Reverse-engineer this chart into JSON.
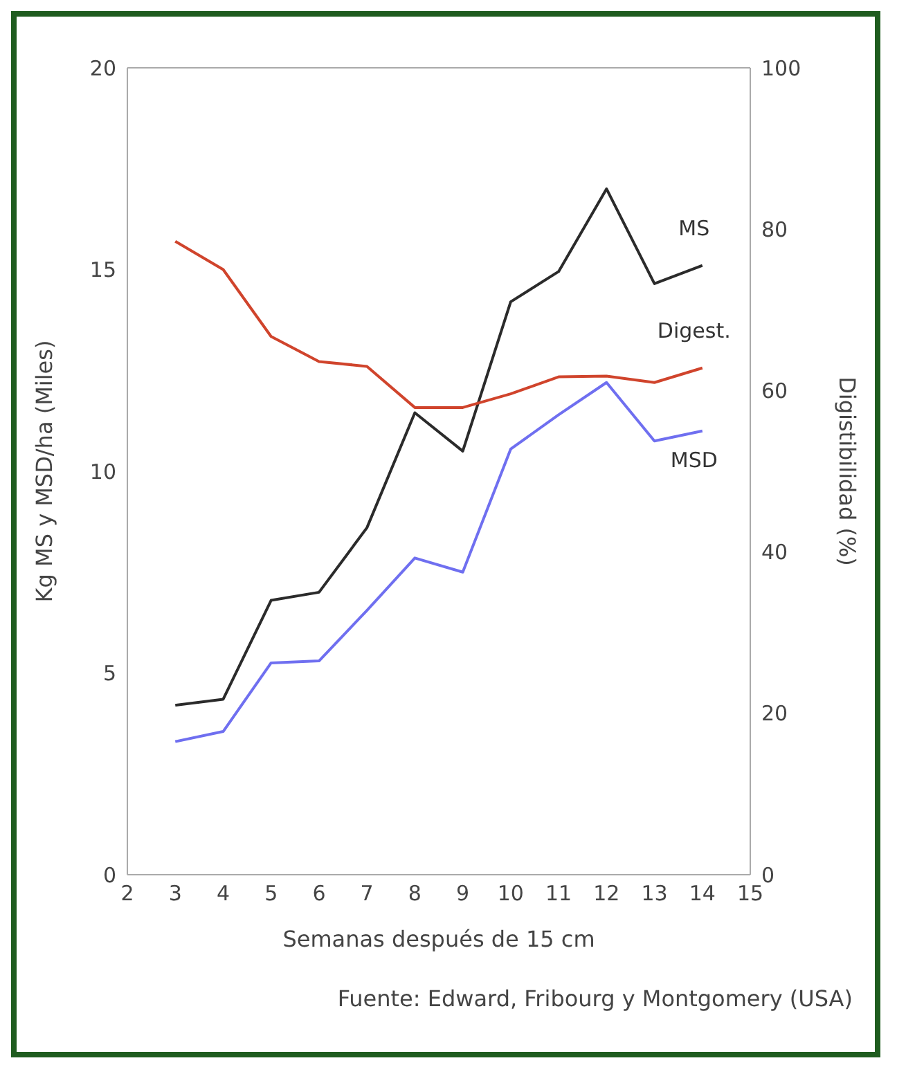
{
  "chart_data": {
    "type": "line",
    "xlabel": "Semanas después de 15 cm",
    "ylabel": "Kg MS y MSD/ha (Miles)",
    "y2label": "Digistibilidad (%)",
    "annotations": [
      "Fuente: Edward, Fribourg y Montgomery (USA)"
    ],
    "x": [
      3,
      4,
      5,
      6,
      7,
      8,
      9,
      10,
      11,
      12,
      13,
      14
    ],
    "xlim": [
      2,
      15
    ],
    "xticks": [
      2,
      3,
      4,
      5,
      6,
      7,
      8,
      9,
      10,
      11,
      12,
      13,
      14,
      15
    ],
    "ylim": [
      0,
      20
    ],
    "yticks": [
      0,
      5,
      10,
      15,
      20
    ],
    "y2lim": [
      0,
      100
    ],
    "y2ticks": [
      0,
      20,
      40,
      60,
      80,
      100
    ],
    "grid": false,
    "series": [
      {
        "name": "MS",
        "color": "#2b2b2b",
        "values": [
          4.2,
          4.35,
          6.8,
          7.0,
          8.6,
          11.45,
          10.5,
          14.2,
          14.95,
          17.0,
          14.65,
          15.1
        ]
      },
      {
        "name": "Digest.",
        "color": "#d0442c",
        "axis": "y2",
        "values": [
          78.5,
          75,
          66.7,
          63.6,
          63,
          57.9,
          57.9,
          59.6,
          61.7,
          61.8,
          61,
          62.8
        ]
      },
      {
        "name": "MSD",
        "color": "#6f6ff0",
        "values": [
          3.3,
          3.55,
          5.25,
          5.3,
          6.55,
          7.85,
          7.5,
          10.55,
          11.4,
          12.2,
          10.75,
          11.0
        ]
      }
    ]
  }
}
